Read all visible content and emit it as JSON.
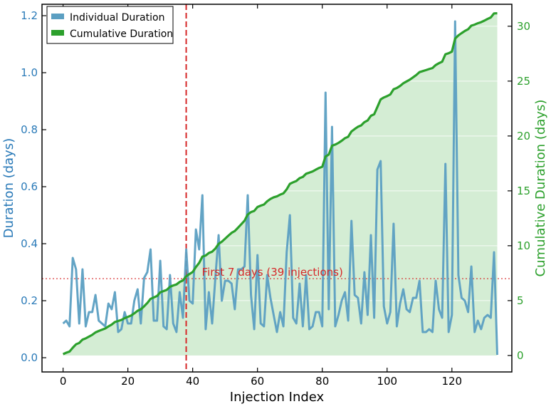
{
  "chart_data": {
    "type": "line",
    "title": "",
    "xlabel": "Injection Index",
    "ylabel_left": "Duration (days)",
    "ylabel_right": "Cumulative Duration (days)",
    "xlim": [
      -6.5,
      138.5
    ],
    "ylim_left": [
      -0.05,
      1.24
    ],
    "ylim_right": [
      -1.5,
      32.0
    ],
    "x_ticks": [
      0,
      20,
      40,
      60,
      80,
      100,
      120
    ],
    "y_ticks_left": [
      0.0,
      0.2,
      0.4,
      0.6,
      0.8,
      1.0,
      1.2
    ],
    "y_ticks_right": [
      0,
      5,
      10,
      15,
      20,
      25,
      30
    ],
    "x_tick_labels": [
      "0",
      "20",
      "40",
      "60",
      "80",
      "100",
      "120"
    ],
    "y_tick_labels_left": [
      "0.0",
      "0.2",
      "0.4",
      "0.6",
      "0.8",
      "1.0",
      "1.2"
    ],
    "y_tick_labels_right": [
      "0",
      "5",
      "10",
      "15",
      "20",
      "25",
      "30"
    ],
    "colors": {
      "individual": "#5b9fc2",
      "cumulative": "#2ca02c",
      "fill": "#d4edd4",
      "cutoff": "#d62728",
      "left_axis": "#2a7ab8",
      "right_axis": "#2ca02c"
    },
    "series": [
      {
        "name": "Individual Duration",
        "axis": "left",
        "values": [
          0.12,
          0.13,
          0.11,
          0.35,
          0.31,
          0.12,
          0.31,
          0.11,
          0.16,
          0.16,
          0.22,
          0.13,
          0.12,
          0.11,
          0.19,
          0.17,
          0.23,
          0.09,
          0.1,
          0.16,
          0.12,
          0.12,
          0.2,
          0.24,
          0.12,
          0.28,
          0.3,
          0.38,
          0.13,
          0.13,
          0.34,
          0.11,
          0.1,
          0.29,
          0.12,
          0.09,
          0.23,
          0.14,
          0.38,
          0.2,
          0.19,
          0.45,
          0.38,
          0.57,
          0.1,
          0.23,
          0.12,
          0.28,
          0.43,
          0.2,
          0.27,
          0.27,
          0.26,
          0.17,
          0.31,
          0.31,
          0.32,
          0.57,
          0.22,
          0.1,
          0.36,
          0.12,
          0.11,
          0.29,
          0.21,
          0.15,
          0.09,
          0.16,
          0.11,
          0.37,
          0.5,
          0.14,
          0.12,
          0.26,
          0.11,
          0.29,
          0.1,
          0.11,
          0.16,
          0.16,
          0.11,
          0.93,
          0.17,
          0.81,
          0.11,
          0.15,
          0.2,
          0.23,
          0.13,
          0.48,
          0.22,
          0.21,
          0.12,
          0.3,
          0.15,
          0.43,
          0.14,
          0.66,
          0.69,
          0.18,
          0.12,
          0.16,
          0.47,
          0.11,
          0.19,
          0.24,
          0.17,
          0.16,
          0.21,
          0.21,
          0.27,
          0.09,
          0.09,
          0.1,
          0.09,
          0.27,
          0.17,
          0.14,
          0.68,
          0.09,
          0.15,
          1.18,
          0.29,
          0.21,
          0.2,
          0.16,
          0.32,
          0.09,
          0.13,
          0.1,
          0.14,
          0.15,
          0.14,
          0.37,
          0.01
        ]
      },
      {
        "name": "Cumulative Duration",
        "axis": "right",
        "computed": "running sum of Individual Duration"
      }
    ],
    "cutoff": {
      "x": 38,
      "y_right": 7.0,
      "label": "First 7 days (39 injections)"
    },
    "legend": {
      "position": "top-left",
      "entries": [
        "Individual Duration",
        "Cumulative Duration"
      ]
    }
  }
}
